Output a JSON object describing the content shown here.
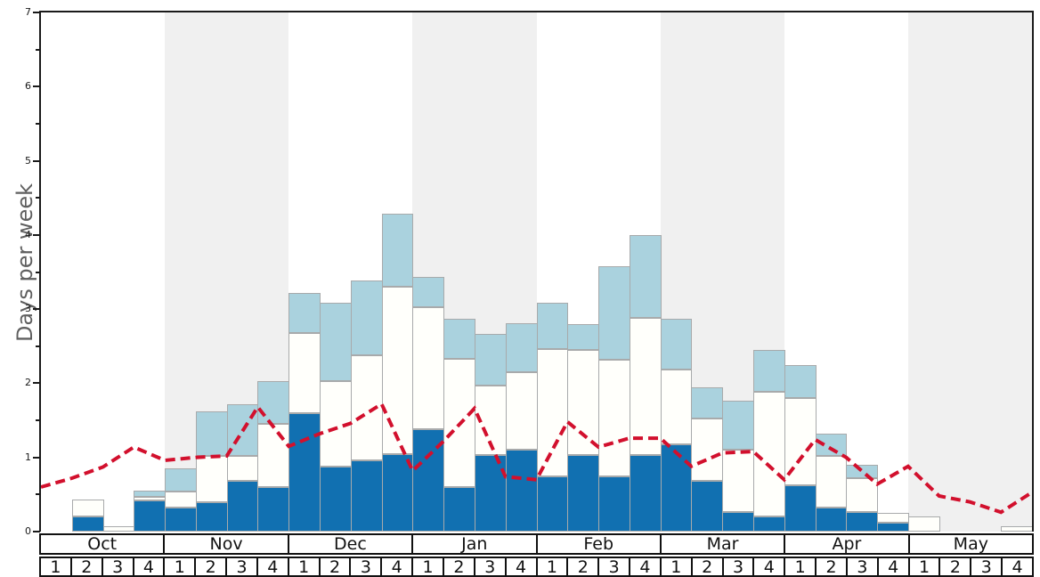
{
  "y_axis": {
    "label": "Days per week",
    "tick_labels": [
      "0",
      "1",
      "2",
      "3",
      "4",
      "5",
      "6",
      "7"
    ],
    "max": 7,
    "minor_tick_step": 0.5
  },
  "x_axis": {
    "month_labels": [
      "Oct",
      "Nov",
      "Dec",
      "Jan",
      "Feb",
      "Mar",
      "Apr",
      "May"
    ],
    "week_labels": [
      "1",
      "2",
      "3",
      "4"
    ]
  },
  "colors": {
    "dark_blue": "#1170b1",
    "white_bar": "#fffffb",
    "light_blue": "#aad2de",
    "red_line": "#d2102d",
    "band_gray": "#f0f0f0",
    "band_white": "#ffffff",
    "bar_border": "#a8aaab",
    "axis": "#1a1a1a",
    "ylabel_gray": "#5f5f5f"
  },
  "chart_data": {
    "type": "bar",
    "subtype": "stacked-bars-with-dashed-line-overlay",
    "title": "",
    "xlabel": "",
    "ylabel": "Days per week",
    "ylim": [
      0,
      7
    ],
    "grid": "off",
    "legend": "none visible",
    "background_bands": "alternating per month: white (Oct, Dec, Feb, Apr) and light gray (Nov, Jan, Mar, May)",
    "categories": [
      "Oct-1",
      "Oct-2",
      "Oct-3",
      "Oct-4",
      "Nov-1",
      "Nov-2",
      "Nov-3",
      "Nov-4",
      "Dec-1",
      "Dec-2",
      "Dec-3",
      "Dec-4",
      "Jan-1",
      "Jan-2",
      "Jan-3",
      "Jan-4",
      "Feb-1",
      "Feb-2",
      "Feb-3",
      "Feb-4",
      "Mar-1",
      "Mar-2",
      "Mar-3",
      "Mar-4",
      "Apr-1",
      "Apr-2",
      "Apr-3",
      "Apr-4",
      "May-1",
      "May-2",
      "May-3",
      "May-4"
    ],
    "series": [
      {
        "name": "dark-blue-bottom-segment",
        "color": "#1170b1",
        "stack_top": [
          0,
          0.2,
          0,
          0.42,
          0.33,
          0.4,
          0.68,
          0.6,
          1.6,
          0.88,
          0.96,
          1.04,
          1.38,
          0.6,
          1.03,
          1.1,
          0.75,
          1.03,
          0.75,
          1.03,
          1.18,
          0.68,
          0.27,
          0.2,
          0.62,
          0.33,
          0.27,
          0.12,
          0,
          0,
          0,
          0
        ]
      },
      {
        "name": "white-middle-segment",
        "color": "#fffffb",
        "stack_top": [
          0,
          0.43,
          0.07,
          0.47,
          0.54,
          1.02,
          1.02,
          1.45,
          2.68,
          2.03,
          2.38,
          3.3,
          3.02,
          2.33,
          1.97,
          2.15,
          2.46,
          2.45,
          2.32,
          2.88,
          2.18,
          1.53,
          1.1,
          1.88,
          1.8,
          1.02,
          0.72,
          0.25,
          0.2,
          0,
          0,
          0.07
        ]
      },
      {
        "name": "light-blue-top-segment",
        "color": "#aad2de",
        "stack_top": [
          0,
          0.43,
          0.07,
          0.55,
          0.85,
          1.62,
          1.72,
          2.03,
          3.22,
          3.09,
          3.38,
          4.29,
          3.43,
          2.87,
          2.67,
          2.81,
          3.08,
          2.8,
          3.58,
          4.0,
          2.87,
          1.95,
          1.77,
          2.45,
          2.25,
          1.32,
          0.9,
          0.25,
          0.2,
          0,
          0,
          0.07
        ]
      }
    ],
    "line": {
      "name": "red-dashed-line",
      "color": "#d2102d",
      "style": "dashed",
      "x_positions": "33 points evenly spaced at week boundaries from left axis to right edge",
      "values": [
        0.6,
        0.72,
        0.87,
        1.14,
        0.96,
        1.0,
        1.02,
        1.68,
        1.15,
        1.32,
        1.46,
        1.72,
        0.82,
        1.22,
        1.66,
        0.74,
        0.7,
        1.48,
        1.14,
        1.26,
        1.26,
        0.88,
        1.06,
        1.08,
        0.7,
        1.24,
        1.0,
        0.64,
        0.88,
        0.48,
        0.4,
        0.26,
        0.53
      ]
    }
  }
}
